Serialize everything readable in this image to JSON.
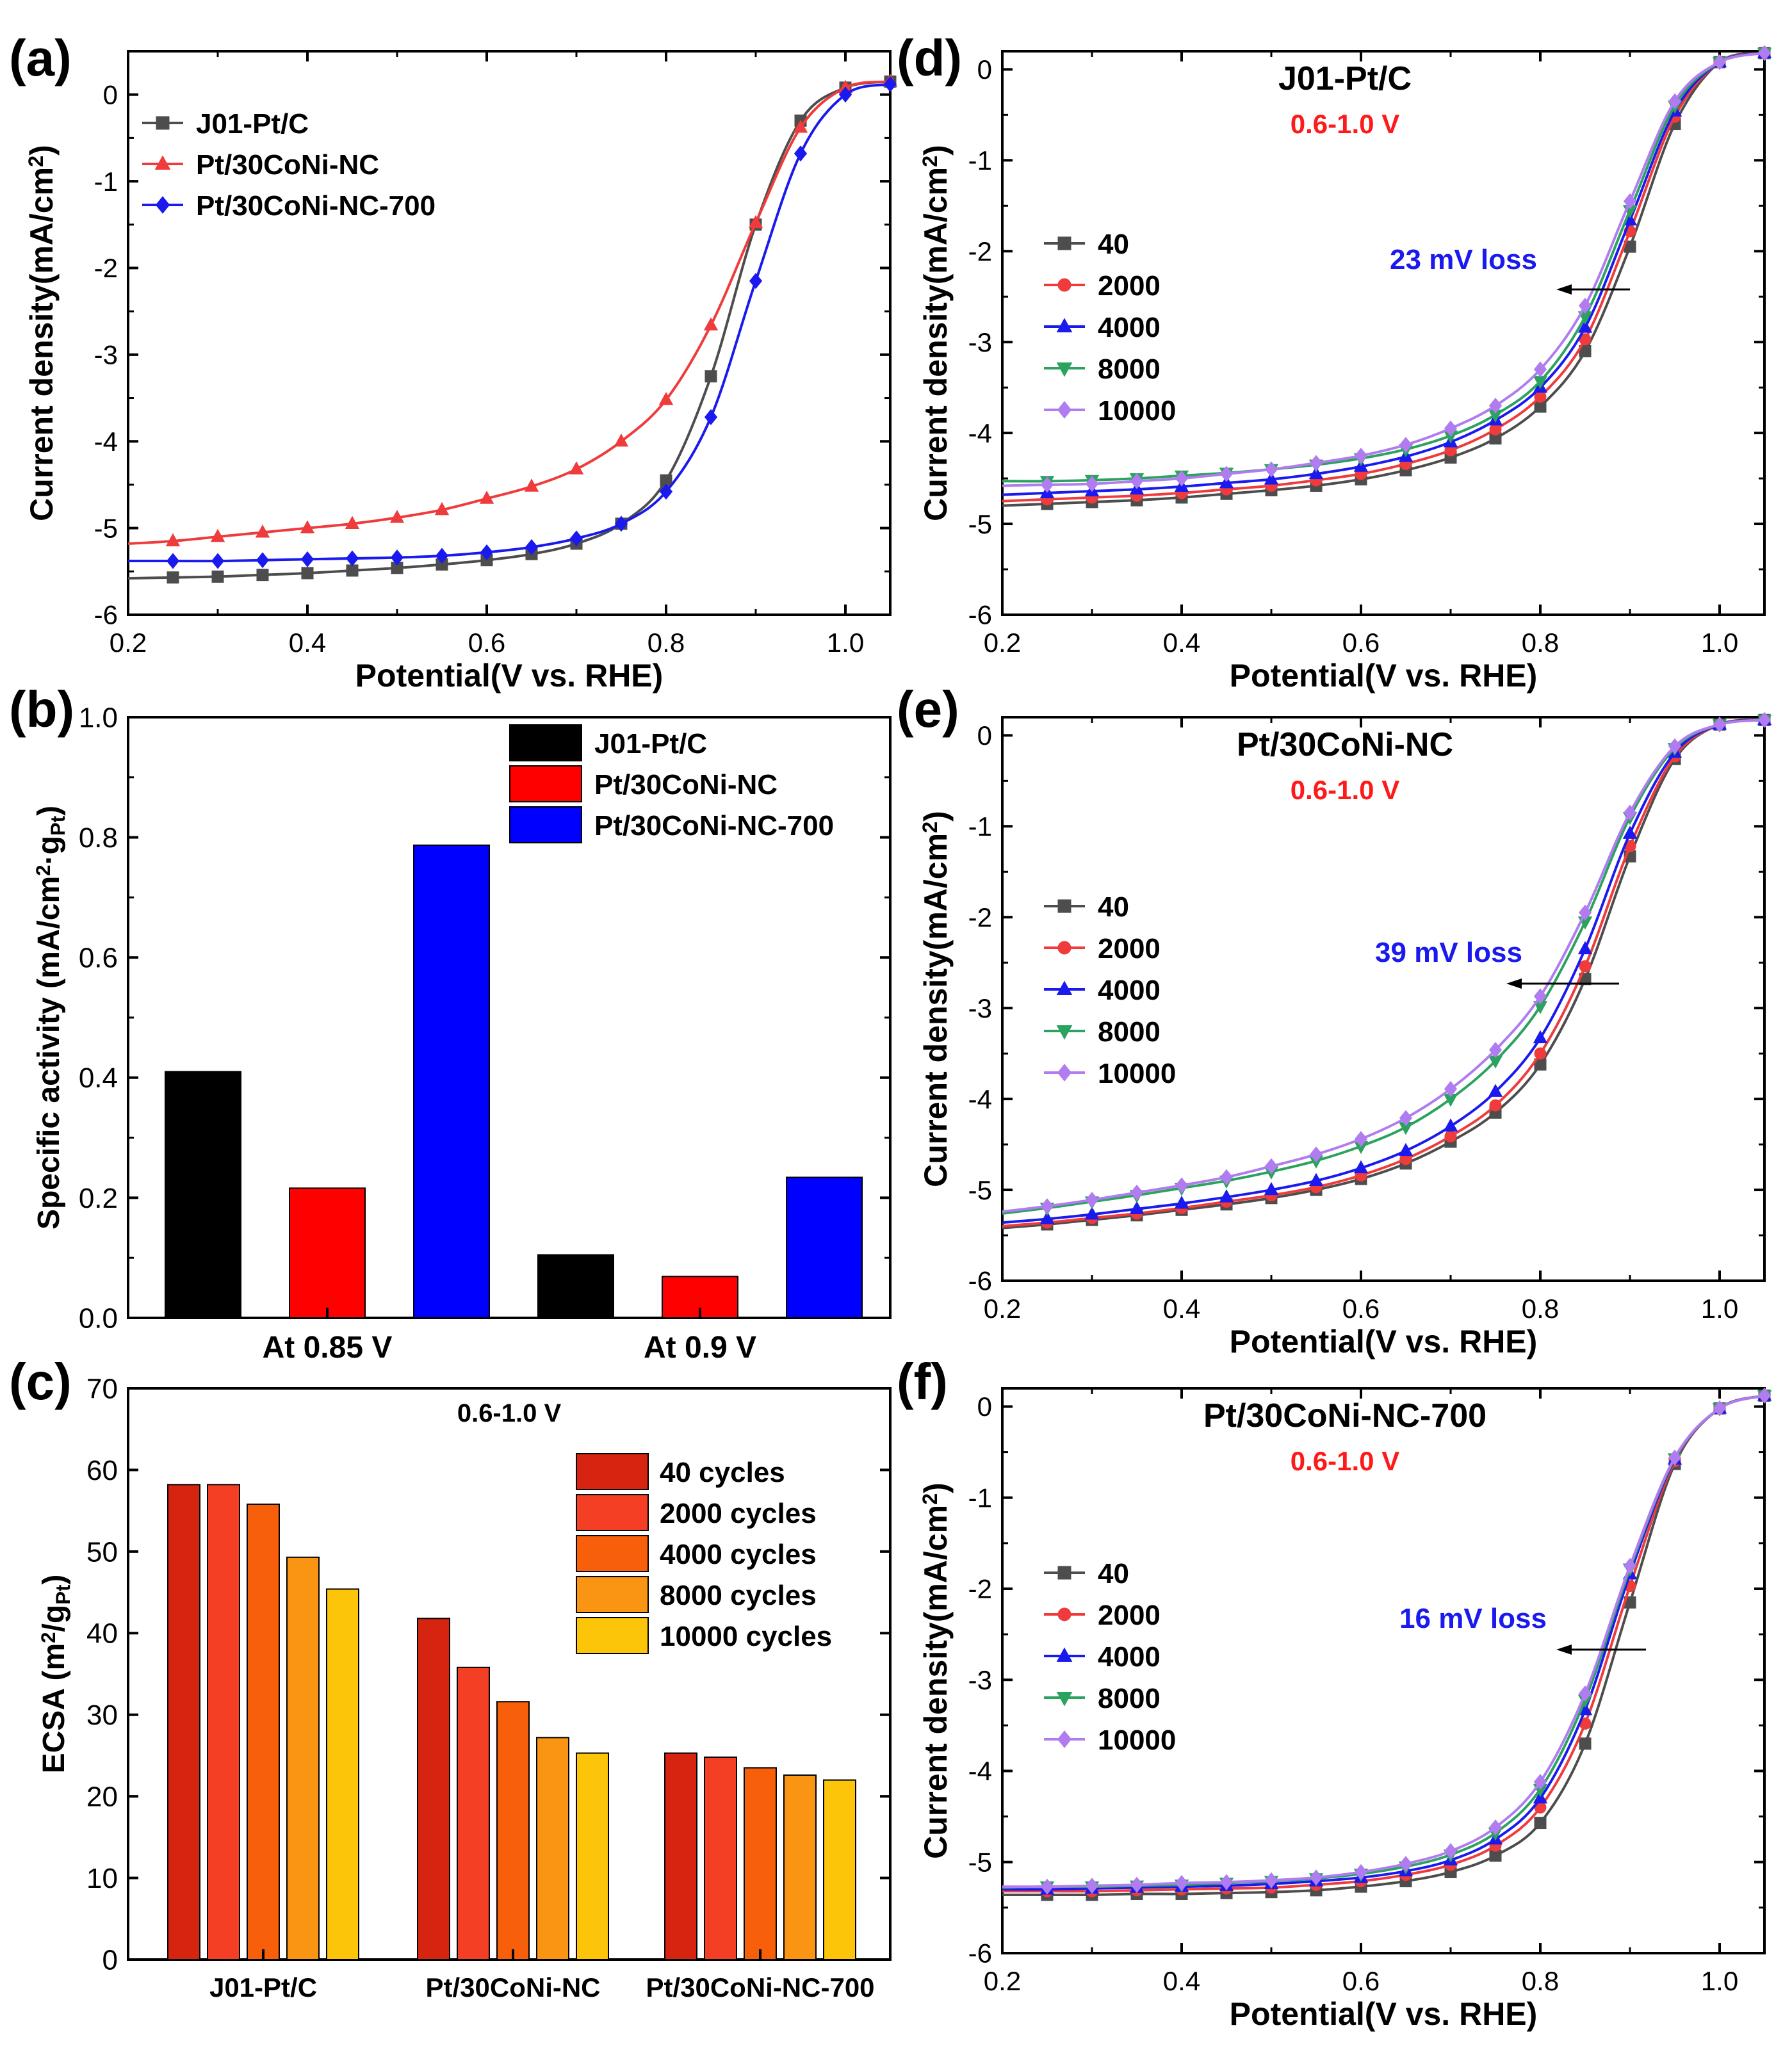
{
  "colors": {
    "black": "#000000",
    "grey": "#4d4d4d",
    "red": "#ef3b3b",
    "blue": "#1a1aee",
    "green": "#2ca25f",
    "violet": "#b07cf0"
  },
  "chart_data": [
    {
      "id": "a",
      "panel_label": "(a)",
      "type": "line",
      "xlabel": "Potential(V vs. RHE)",
      "ylabel": "Current density(mA/cm²)",
      "xlim": [
        0.2,
        1.05
      ],
      "ylim": [
        -6,
        0.5
      ],
      "xticks": [
        "0.2",
        "0.4",
        "0.6",
        "0.8",
        "1.0"
      ],
      "yticks": [
        "-6",
        "-5",
        "-4",
        "-3",
        "-2",
        "-1",
        "0"
      ],
      "x": [
        0.2,
        0.25,
        0.3,
        0.35,
        0.4,
        0.45,
        0.5,
        0.55,
        0.6,
        0.65,
        0.7,
        0.75,
        0.8,
        0.85,
        0.9,
        0.95,
        1.0,
        1.05
      ],
      "series": [
        {
          "name": "J01-Pt/C",
          "color": "#4d4d4d",
          "marker": "square",
          "values": [
            -5.58,
            -5.57,
            -5.56,
            -5.54,
            -5.52,
            -5.49,
            -5.46,
            -5.42,
            -5.37,
            -5.3,
            -5.18,
            -4.95,
            -4.45,
            -3.25,
            -1.5,
            -0.3,
            0.08,
            0.15
          ]
        },
        {
          "name": "Pt/30CoNi-NC",
          "color": "#ef3b3b",
          "marker": "triangle",
          "values": [
            -5.18,
            -5.15,
            -5.1,
            -5.05,
            -5.0,
            -4.95,
            -4.88,
            -4.79,
            -4.66,
            -4.52,
            -4.32,
            -4.0,
            -3.52,
            -2.66,
            -1.48,
            -0.38,
            0.08,
            0.15
          ]
        },
        {
          "name": "Pt/30CoNi-NC-700",
          "color": "#1a1aee",
          "marker": "diamond",
          "values": [
            -5.38,
            -5.38,
            -5.38,
            -5.37,
            -5.36,
            -5.35,
            -5.34,
            -5.32,
            -5.28,
            -5.22,
            -5.12,
            -4.95,
            -4.58,
            -3.72,
            -2.15,
            -0.68,
            0.0,
            0.12
          ]
        }
      ]
    },
    {
      "id": "b",
      "panel_label": "(b)",
      "type": "bar",
      "ylabel": "Specific activity (mA/cm²·gPt)",
      "ylim": [
        0,
        1.0
      ],
      "yticks": [
        "0.0",
        "0.2",
        "0.4",
        "0.6",
        "0.8",
        "1.0"
      ],
      "categories": [
        "At 0.85 V",
        "At 0.9 V"
      ],
      "series": [
        {
          "name": "J01-Pt/C",
          "color": "#000000",
          "values": [
            0.41,
            0.105
          ]
        },
        {
          "name": "Pt/30CoNi-NC",
          "color": "#ff0000",
          "values": [
            0.216,
            0.069
          ]
        },
        {
          "name": "Pt/30CoNi-NC-700",
          "color": "#0000ff",
          "values": [
            0.787,
            0.234
          ]
        }
      ]
    },
    {
      "id": "c",
      "panel_label": "(c)",
      "type": "bar",
      "title": "0.6-1.0 V",
      "ylabel": "ECSA (m²/gPt)",
      "ylim": [
        0,
        70
      ],
      "yticks": [
        "0",
        "10",
        "20",
        "30",
        "40",
        "50",
        "60",
        "70"
      ],
      "categories": [
        "J01-Pt/C",
        "Pt/30CoNi-NC",
        "Pt/30CoNi-NC-700"
      ],
      "series": [
        {
          "name": "40 cycles",
          "color": "#d62410",
          "values": [
            58.2,
            41.8,
            25.3
          ]
        },
        {
          "name": "2000 cycles",
          "color": "#f53f24",
          "values": [
            58.2,
            35.8,
            24.8
          ]
        },
        {
          "name": "4000 cycles",
          "color": "#f85f0a",
          "values": [
            55.8,
            31.6,
            23.5
          ]
        },
        {
          "name": "8000 cycles",
          "color": "#f99512",
          "values": [
            49.3,
            27.2,
            22.6
          ]
        },
        {
          "name": "10000 cycles",
          "color": "#fcc50a",
          "values": [
            45.4,
            25.3,
            22.0
          ]
        }
      ]
    },
    {
      "id": "d",
      "panel_label": "(d)",
      "type": "line",
      "title": "J01-Pt/C",
      "subtitle": "0.6-1.0 V",
      "annotation": "23 mV loss",
      "xlabel": "Potential(V vs. RHE)",
      "ylabel": "Current density(mA/cm²)",
      "xlim": [
        0.2,
        1.05
      ],
      "ylim": [
        -6,
        0.2
      ],
      "xticks": [
        "0.2",
        "0.4",
        "0.6",
        "0.8",
        "1.0"
      ],
      "yticks": [
        "-6",
        "-5",
        "-4",
        "-3",
        "-2",
        "-1",
        "0"
      ],
      "x": [
        0.2,
        0.25,
        0.3,
        0.35,
        0.4,
        0.45,
        0.5,
        0.55,
        0.6,
        0.65,
        0.7,
        0.75,
        0.8,
        0.85,
        0.9,
        0.95,
        1.0,
        1.05
      ],
      "series": [
        {
          "name": "40",
          "color": "#4d4d4d",
          "marker": "square",
          "values": [
            -4.8,
            -4.78,
            -4.76,
            -4.74,
            -4.71,
            -4.67,
            -4.63,
            -4.58,
            -4.51,
            -4.41,
            -4.27,
            -4.06,
            -3.71,
            -3.1,
            -1.95,
            -0.6,
            0.08,
            0.18
          ]
        },
        {
          "name": "2000",
          "color": "#ef3b3b",
          "marker": "circle",
          "values": [
            -4.75,
            -4.73,
            -4.71,
            -4.69,
            -4.66,
            -4.62,
            -4.58,
            -4.52,
            -4.45,
            -4.34,
            -4.19,
            -3.96,
            -3.6,
            -2.97,
            -1.78,
            -0.52,
            0.08,
            0.18
          ]
        },
        {
          "name": "4000",
          "color": "#1a1aee",
          "marker": "triangle",
          "values": [
            -4.68,
            -4.66,
            -4.64,
            -4.62,
            -4.59,
            -4.55,
            -4.51,
            -4.45,
            -4.37,
            -4.26,
            -4.1,
            -3.86,
            -3.5,
            -2.84,
            -1.66,
            -0.46,
            0.08,
            0.18
          ]
        },
        {
          "name": "8000",
          "color": "#2ca25f",
          "marker": "triangle-down",
          "values": [
            -4.53,
            -4.53,
            -4.52,
            -4.5,
            -4.47,
            -4.44,
            -4.4,
            -4.35,
            -4.28,
            -4.18,
            -4.03,
            -3.8,
            -3.43,
            -2.72,
            -1.55,
            -0.4,
            0.08,
            0.18
          ]
        },
        {
          "name": "10000",
          "color": "#b07cf0",
          "marker": "diamond",
          "values": [
            -4.58,
            -4.57,
            -4.56,
            -4.53,
            -4.5,
            -4.45,
            -4.4,
            -4.33,
            -4.25,
            -4.13,
            -3.95,
            -3.7,
            -3.3,
            -2.6,
            -1.45,
            -0.35,
            0.08,
            0.18
          ]
        }
      ]
    },
    {
      "id": "e",
      "panel_label": "(e)",
      "type": "line",
      "title": "Pt/30CoNi-NC",
      "subtitle": "0.6-1.0 V",
      "annotation": "39 mV loss",
      "xlabel": "Potential(V vs. RHE)",
      "ylabel": "Current density(mA/cm²)",
      "xlim": [
        0.2,
        1.05
      ],
      "ylim": [
        -6,
        0.2
      ],
      "xticks": [
        "0.2",
        "0.4",
        "0.6",
        "0.8",
        "1.0"
      ],
      "yticks": [
        "-6",
        "-5",
        "-4",
        "-3",
        "-2",
        "-1",
        "0"
      ],
      "x": [
        0.2,
        0.25,
        0.3,
        0.35,
        0.4,
        0.45,
        0.5,
        0.55,
        0.6,
        0.65,
        0.7,
        0.75,
        0.8,
        0.85,
        0.9,
        0.95,
        1.0,
        1.05
      ],
      "series": [
        {
          "name": "40",
          "color": "#4d4d4d",
          "marker": "square",
          "values": [
            -5.42,
            -5.38,
            -5.33,
            -5.28,
            -5.22,
            -5.16,
            -5.09,
            -5.0,
            -4.88,
            -4.71,
            -4.47,
            -4.15,
            -3.62,
            -2.68,
            -1.33,
            -0.26,
            0.12,
            0.17
          ]
        },
        {
          "name": "2000",
          "color": "#ef3b3b",
          "marker": "circle",
          "values": [
            -5.4,
            -5.36,
            -5.31,
            -5.26,
            -5.2,
            -5.13,
            -5.06,
            -4.97,
            -4.84,
            -4.66,
            -4.41,
            -4.07,
            -3.5,
            -2.54,
            -1.22,
            -0.23,
            0.12,
            0.17
          ]
        },
        {
          "name": "4000",
          "color": "#1a1aee",
          "marker": "triangle",
          "values": [
            -5.36,
            -5.32,
            -5.27,
            -5.21,
            -5.15,
            -5.08,
            -5.0,
            -4.9,
            -4.76,
            -4.57,
            -4.3,
            -3.92,
            -3.33,
            -2.35,
            -1.08,
            -0.19,
            0.12,
            0.17
          ]
        },
        {
          "name": "8000",
          "color": "#2ca25f",
          "marker": "triangle-down",
          "values": [
            -5.26,
            -5.2,
            -5.13,
            -5.06,
            -4.98,
            -4.9,
            -4.8,
            -4.68,
            -4.52,
            -4.31,
            -4.0,
            -3.58,
            -2.98,
            -2.05,
            -0.9,
            -0.14,
            0.12,
            0.17
          ]
        },
        {
          "name": "10000",
          "color": "#b07cf0",
          "marker": "diamond",
          "values": [
            -5.24,
            -5.18,
            -5.11,
            -5.03,
            -4.95,
            -4.86,
            -4.74,
            -4.61,
            -4.44,
            -4.21,
            -3.89,
            -3.46,
            -2.87,
            -1.95,
            -0.85,
            -0.12,
            0.12,
            0.17
          ]
        }
      ]
    },
    {
      "id": "f",
      "panel_label": "(f)",
      "type": "line",
      "title": "Pt/30CoNi-NC-700",
      "subtitle": "0.6-1.0 V",
      "annotation": "16 mV loss",
      "xlabel": "Potential(V vs. RHE)",
      "ylabel": "Current density(mA/cm²)",
      "xlim": [
        0.2,
        1.05
      ],
      "ylim": [
        -6,
        0.2
      ],
      "xticks": [
        "0.2",
        "0.4",
        "0.6",
        "0.8",
        "1.0"
      ],
      "yticks": [
        "-6",
        "-5",
        "-4",
        "-3",
        "-2",
        "-1",
        "0"
      ],
      "x": [
        0.2,
        0.25,
        0.3,
        0.35,
        0.4,
        0.45,
        0.5,
        0.55,
        0.6,
        0.65,
        0.7,
        0.75,
        0.8,
        0.85,
        0.9,
        0.95,
        1.0,
        1.05
      ],
      "series": [
        {
          "name": "40",
          "color": "#4d4d4d",
          "marker": "square",
          "values": [
            -5.36,
            -5.36,
            -5.36,
            -5.35,
            -5.35,
            -5.34,
            -5.33,
            -5.31,
            -5.27,
            -5.21,
            -5.11,
            -4.93,
            -4.57,
            -3.7,
            -2.15,
            -0.63,
            -0.02,
            0.12
          ]
        },
        {
          "name": "2000",
          "color": "#ef3b3b",
          "marker": "circle",
          "values": [
            -5.32,
            -5.32,
            -5.32,
            -5.31,
            -5.3,
            -5.29,
            -5.28,
            -5.25,
            -5.21,
            -5.14,
            -5.03,
            -4.82,
            -4.4,
            -3.48,
            -1.97,
            -0.6,
            -0.02,
            0.12
          ]
        },
        {
          "name": "4000",
          "color": "#1a1aee",
          "marker": "triangle",
          "values": [
            -5.3,
            -5.3,
            -5.29,
            -5.28,
            -5.27,
            -5.26,
            -5.24,
            -5.21,
            -5.17,
            -5.1,
            -4.98,
            -4.75,
            -4.3,
            -3.33,
            -1.84,
            -0.58,
            -0.02,
            0.12
          ]
        },
        {
          "name": "8000",
          "color": "#2ca25f",
          "marker": "triangle-down",
          "values": [
            -5.28,
            -5.27,
            -5.27,
            -5.26,
            -5.25,
            -5.23,
            -5.21,
            -5.18,
            -5.13,
            -5.05,
            -4.92,
            -4.68,
            -4.2,
            -3.22,
            -1.78,
            -0.57,
            -0.02,
            0.12
          ]
        },
        {
          "name": "10000",
          "color": "#b07cf0",
          "marker": "diamond",
          "values": [
            -5.27,
            -5.27,
            -5.26,
            -5.25,
            -5.23,
            -5.22,
            -5.2,
            -5.17,
            -5.11,
            -5.02,
            -4.88,
            -4.62,
            -4.12,
            -3.15,
            -1.75,
            -0.56,
            -0.02,
            0.12
          ]
        }
      ]
    }
  ]
}
